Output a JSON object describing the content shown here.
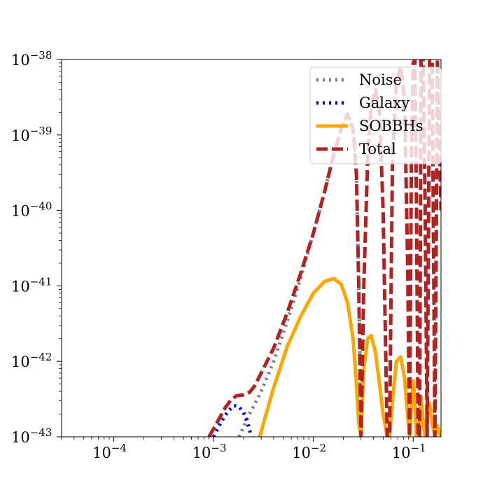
{
  "chart_data": {
    "type": "line",
    "title": "",
    "xlabel": "",
    "ylabel": "",
    "xscale": "log",
    "yscale": "log",
    "xlim": [
      3e-05,
      0.19
    ],
    "ylim": [
      1e-43,
      1e-38
    ],
    "grid": false,
    "legend_position": "upper right",
    "x_ticks": [
      {
        "value": 0.0001,
        "base": "10",
        "exp": "−4"
      },
      {
        "value": 0.001,
        "base": "10",
        "exp": "−3"
      },
      {
        "value": 0.01,
        "base": "10",
        "exp": "−2"
      },
      {
        "value": 0.1,
        "base": "10",
        "exp": "−1"
      }
    ],
    "y_ticks": [
      {
        "value": 1e-43,
        "base": "10",
        "exp": "−43"
      },
      {
        "value": 1e-42,
        "base": "10",
        "exp": "−42"
      },
      {
        "value": 1e-41,
        "base": "10",
        "exp": "−41"
      },
      {
        "value": 1e-40,
        "base": "10",
        "exp": "−40"
      },
      {
        "value": 1e-39,
        "base": "10",
        "exp": "−39"
      },
      {
        "value": 1e-38,
        "base": "10",
        "exp": "−38"
      }
    ],
    "series": [
      {
        "name": "Noise",
        "color": "#808080",
        "style": "dotted",
        "x": [
          0.0018,
          0.0022,
          0.003,
          0.004,
          0.0055,
          0.0075,
          0.01,
          0.013,
          0.016,
          0.019,
          0.022,
          0.025,
          0.027,
          0.0285,
          0.03
        ],
        "y": [
          1e-43,
          1.8e-43,
          4e-43,
          1e-42,
          3.5e-42,
          1.3e-41,
          5e-41,
          1.8e-40,
          5.5e-40,
          1.2e-39,
          1.9e-39,
          1.2e-39,
          3e-40,
          1e-41,
          1e-43
        ]
      },
      {
        "name": "Galaxy",
        "color": "#0000ee",
        "style": "dotted",
        "x": [
          0.001,
          0.0012,
          0.0014,
          0.0016,
          0.0018,
          0.002,
          0.0022,
          0.0024
        ],
        "y": [
          1e-43,
          1.6e-43,
          2.2e-43,
          2.6e-43,
          2.5e-43,
          2.1e-43,
          1.5e-43,
          1e-43
        ]
      },
      {
        "name": "SOBBHs",
        "color": "#ffa500",
        "style": "solid",
        "x": [
          0.0029,
          0.004,
          0.0055,
          0.0075,
          0.01,
          0.013,
          0.016,
          0.019,
          0.022,
          0.025,
          0.027,
          0.0285,
          0.03,
          0.032,
          0.035,
          0.038,
          0.042,
          0.046,
          0.05,
          0.055,
          0.058,
          0.062,
          0.068,
          0.075,
          0.082,
          0.088,
          0.092,
          0.096,
          0.1,
          0.104,
          0.108,
          0.112,
          0.116,
          0.12,
          0.126,
          0.132,
          0.138,
          0.146,
          0.155,
          0.165,
          0.175,
          0.19
        ],
        "y": [
          1e-43,
          4.5e-43,
          1.6e-42,
          4e-42,
          8e-42,
          1.15e-41,
          1.25e-41,
          1.05e-41,
          6e-42,
          2e-42,
          5e-43,
          1.5e-43,
          1e-43,
          8e-43,
          2e-42,
          2.2e-42,
          1.3e-42,
          5e-43,
          2e-43,
          1e-43,
          1e-43,
          3e-43,
          1e-42,
          1.15e-42,
          6e-43,
          2e-43,
          1e-43,
          2.5e-43,
          5.5e-43,
          3e-43,
          1e-43,
          1e-43,
          1.5e-43,
          3.4e-43,
          1.5e-43,
          1e-43,
          2e-43,
          2.8e-43,
          1.5e-43,
          1e-43,
          1.4e-43,
          1e-43
        ]
      },
      {
        "name": "Total",
        "color": "#b22222",
        "style": "dashed",
        "x": [
          0.0009,
          0.0011,
          0.0013,
          0.0015,
          0.0017,
          0.002,
          0.0023,
          0.0026,
          0.003,
          0.004,
          0.0055,
          0.0075,
          0.01,
          0.013,
          0.016,
          0.019,
          0.022,
          0.025,
          0.027,
          0.0285,
          0.03,
          0.032,
          0.035,
          0.038,
          0.042,
          0.046,
          0.05,
          0.055,
          0.058,
          0.062,
          0.068,
          0.075,
          0.082,
          0.088,
          0.092,
          0.096,
          0.1,
          0.104,
          0.108,
          0.112,
          0.116,
          0.12,
          0.126,
          0.132,
          0.138,
          0.146,
          0.155,
          0.165,
          0.175,
          0.19
        ],
        "y": [
          1e-43,
          1.6e-43,
          2.4e-43,
          3.1e-43,
          3.5e-43,
          3.6e-43,
          3.9e-43,
          4.8e-43,
          7e-43,
          1.5e-42,
          4.5e-42,
          1.5e-41,
          5e-41,
          1.8e-40,
          5.5e-40,
          1.2e-39,
          1.9e-39,
          1.2e-39,
          3e-40,
          1e-41,
          1e-43,
          1e-41,
          5e-40,
          2.5e-39,
          4e-39,
          2e-39,
          1e-40,
          1e-43,
          1e-43,
          5e-40,
          5e-39,
          8e-39,
          3e-39,
          2e-41,
          1e-43,
          5e-40,
          9e-39,
          1e-38,
          1e-40,
          1e-43,
          1e-43,
          1e-38,
          1e-38,
          1e-40,
          1e-43,
          1e-38,
          1e-38,
          1e-43,
          1e-38,
          1e-40
        ]
      }
    ]
  }
}
